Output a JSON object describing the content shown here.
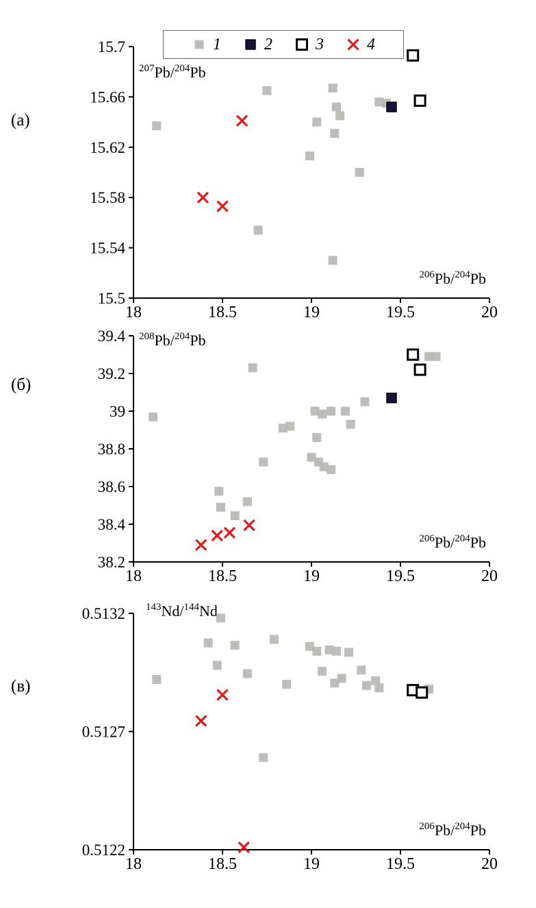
{
  "figure": {
    "description": "Three stacked isotope-ratio scatter plots",
    "panels": [
      "(а)",
      "(б)",
      "(в)"
    ]
  },
  "colors": {
    "gray": "#b7b7b3",
    "navy": "#15153a",
    "open_fill": "#ffffff",
    "open_border": "#000000",
    "red": "#e11b1b",
    "axis": "#000000"
  },
  "legend": {
    "items": [
      {
        "label": "1",
        "marker": "gray-square"
      },
      {
        "label": "2",
        "marker": "navy-square"
      },
      {
        "label": "3",
        "marker": "open-square"
      },
      {
        "label": "4",
        "marker": "red-x"
      }
    ]
  },
  "chart_data": [
    {
      "type": "scatter",
      "panel_label": "(а)",
      "ylabel": "^{207}Pb/^{204}Pb",
      "xlabel": "^{206}Pb/^{204}Pb",
      "xlim": [
        18,
        20
      ],
      "ylim": [
        15.5,
        15.7
      ],
      "xticks": [
        {
          "v": 18,
          "label": "18"
        },
        {
          "v": 18.5,
          "label": "18.5"
        },
        {
          "v": 19,
          "label": "19"
        },
        {
          "v": 19.5,
          "label": "19.5"
        },
        {
          "v": 20,
          "label": "20"
        }
      ],
      "yticks": [
        {
          "v": 15.5,
          "label": "15.5"
        },
        {
          "v": 15.54,
          "label": "15.54"
        },
        {
          "v": 15.58,
          "label": "15.58"
        },
        {
          "v": 15.62,
          "label": "15.62"
        },
        {
          "v": 15.66,
          "label": "15.66"
        },
        {
          "v": 15.7,
          "label": "15.7"
        }
      ],
      "grid": false,
      "series": [
        {
          "name": "1",
          "marker": "gray-square",
          "points": [
            [
              18.13,
              15.637
            ],
            [
              18.75,
              15.665
            ],
            [
              19.12,
              15.667
            ],
            [
              19.03,
              15.64
            ],
            [
              19.14,
              15.652
            ],
            [
              19.16,
              15.645
            ],
            [
              19.13,
              15.631
            ],
            [
              18.99,
              15.613
            ],
            [
              19.27,
              15.6
            ],
            [
              18.7,
              15.554
            ],
            [
              19.12,
              15.53
            ],
            [
              19.38,
              15.656
            ],
            [
              19.42,
              15.655
            ]
          ]
        },
        {
          "name": "2",
          "marker": "navy-square",
          "points": [
            [
              19.45,
              15.652
            ]
          ]
        },
        {
          "name": "3",
          "marker": "open-square",
          "points": [
            [
              19.57,
              15.693
            ],
            [
              19.61,
              15.657
            ]
          ]
        },
        {
          "name": "4",
          "marker": "red-x",
          "points": [
            [
              18.61,
              15.641
            ],
            [
              18.39,
              15.58
            ],
            [
              18.5,
              15.573
            ]
          ]
        }
      ]
    },
    {
      "type": "scatter",
      "panel_label": "(б)",
      "ylabel": "^{208}Pb/^{204}Pb",
      "xlabel": "^{206}Pb/^{204}Pb",
      "xlim": [
        18,
        20
      ],
      "ylim": [
        38.2,
        39.4
      ],
      "xticks": [
        {
          "v": 18,
          "label": "18"
        },
        {
          "v": 18.5,
          "label": "18.5"
        },
        {
          "v": 19,
          "label": "19"
        },
        {
          "v": 19.5,
          "label": "19.5"
        },
        {
          "v": 20,
          "label": "20"
        }
      ],
      "yticks": [
        {
          "v": 38.2,
          "label": "38.2"
        },
        {
          "v": 38.4,
          "label": "38.4"
        },
        {
          "v": 38.6,
          "label": "38.6"
        },
        {
          "v": 38.8,
          "label": "38.8"
        },
        {
          "v": 39,
          "label": "39"
        },
        {
          "v": 39.2,
          "label": "39.2"
        },
        {
          "v": 39.4,
          "label": "39.4"
        }
      ],
      "grid": false,
      "series": [
        {
          "name": "1",
          "marker": "gray-square",
          "points": [
            [
              18.11,
              38.97
            ],
            [
              18.67,
              39.23
            ],
            [
              19.66,
              39.29
            ],
            [
              19.7,
              39.29
            ],
            [
              18.48,
              38.575
            ],
            [
              18.49,
              38.49
            ],
            [
              18.57,
              38.445
            ],
            [
              18.64,
              38.52
            ],
            [
              18.73,
              38.73
            ],
            [
              18.84,
              38.91
            ],
            [
              18.88,
              38.92
            ],
            [
              19.03,
              38.86
            ],
            [
              19.0,
              38.755
            ],
            [
              19.04,
              38.73
            ],
            [
              19.07,
              38.705
            ],
            [
              19.11,
              38.69
            ],
            [
              19.02,
              39.0
            ],
            [
              19.06,
              38.985
            ],
            [
              19.11,
              39.0
            ],
            [
              19.19,
              39.0
            ],
            [
              19.22,
              38.93
            ],
            [
              19.3,
              39.05
            ]
          ]
        },
        {
          "name": "2",
          "marker": "navy-square",
          "points": [
            [
              19.45,
              39.07
            ]
          ]
        },
        {
          "name": "3",
          "marker": "open-square",
          "points": [
            [
              19.57,
              39.3
            ],
            [
              19.61,
              39.22
            ]
          ]
        },
        {
          "name": "4",
          "marker": "red-x",
          "points": [
            [
              18.38,
              38.29
            ],
            [
              18.47,
              38.34
            ],
            [
              18.54,
              38.355
            ],
            [
              18.65,
              38.395
            ]
          ]
        }
      ]
    },
    {
      "type": "scatter",
      "panel_label": "(в)",
      "ylabel": "^{143}Nd/^{144}Nd",
      "xlabel": "^{206}Pb/^{204}Pb",
      "xlim": [
        18,
        20
      ],
      "ylim": [
        0.5122,
        0.5132
      ],
      "xticks": [
        {
          "v": 18,
          "label": "18"
        },
        {
          "v": 18.5,
          "label": "18.5"
        },
        {
          "v": 19,
          "label": "19"
        },
        {
          "v": 19.5,
          "label": "19.5"
        },
        {
          "v": 20,
          "label": "20"
        }
      ],
      "yticks": [
        {
          "v": 0.5122,
          "label": "0.5122"
        },
        {
          "v": 0.5127,
          "label": "0.5127"
        },
        {
          "v": 0.5132,
          "label": "0.5132"
        }
      ],
      "grid": false,
      "series": [
        {
          "name": "1",
          "marker": "gray-square",
          "points": [
            [
              18.13,
              0.51292
            ],
            [
              18.49,
              0.51318
            ],
            [
              18.42,
              0.513075
            ],
            [
              18.57,
              0.513065
            ],
            [
              18.79,
              0.51309
            ],
            [
              18.47,
              0.51298
            ],
            [
              18.64,
              0.512945
            ],
            [
              18.86,
              0.5129
            ],
            [
              18.99,
              0.51306
            ],
            [
              19.03,
              0.51304
            ],
            [
              19.06,
              0.512955
            ],
            [
              19.1,
              0.513045
            ],
            [
              19.14,
              0.51304
            ],
            [
              19.13,
              0.512905
            ],
            [
              19.17,
              0.512925
            ],
            [
              19.21,
              0.513035
            ],
            [
              19.28,
              0.51296
            ],
            [
              19.31,
              0.512895
            ],
            [
              19.36,
              0.512915
            ],
            [
              19.38,
              0.512885
            ],
            [
              18.73,
              0.51259
            ],
            [
              19.66,
              0.51288
            ]
          ]
        },
        {
          "name": "3",
          "marker": "open-square",
          "points": [
            [
              19.57,
              0.512875
            ],
            [
              19.62,
              0.512865
            ]
          ]
        },
        {
          "name": "4",
          "marker": "red-x",
          "points": [
            [
              18.5,
              0.512855
            ],
            [
              18.38,
              0.512745
            ],
            [
              18.62,
              0.51221
            ]
          ]
        }
      ]
    }
  ]
}
